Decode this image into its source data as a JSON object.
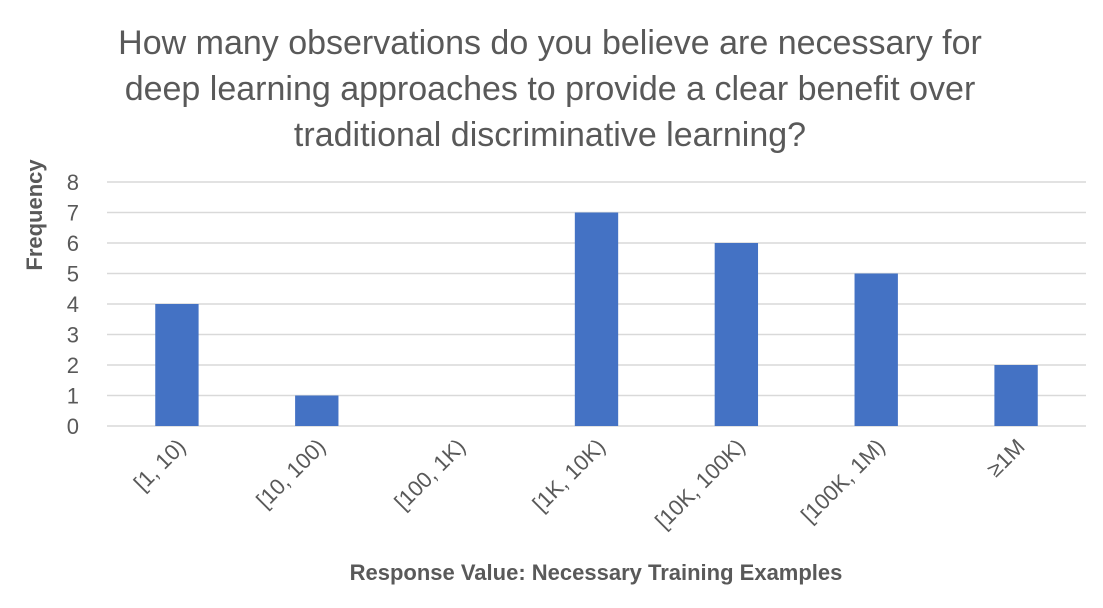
{
  "chart_data": {
    "type": "bar",
    "title_lines": [
      "How many observations do you believe are necessary for",
      "deep learning approaches to provide a clear benefit over",
      "traditional discriminative learning?"
    ],
    "xlabel": "Response Value: Necessary Training Examples",
    "ylabel": "Frequency",
    "categories": [
      "[1, 10)",
      "[10, 100)",
      "[100, 1K)",
      "[1K, 10K)",
      "[10K, 100K)",
      "[100K, 1M)",
      "≥1M"
    ],
    "values": [
      4,
      1,
      0,
      7,
      6,
      5,
      2
    ],
    "ylim": [
      0,
      8
    ],
    "yticks": [
      "0",
      "1",
      "2",
      "3",
      "4",
      "5",
      "6",
      "7",
      "8"
    ],
    "grid": true,
    "legend": "none",
    "bar_color": "#4472C4",
    "grid_color": "#D9D9D9",
    "text_color": "#595959"
  }
}
